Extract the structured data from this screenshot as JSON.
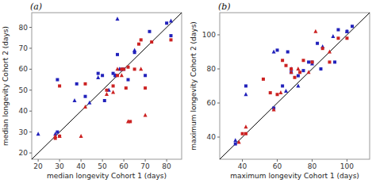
{
  "chart_data": [
    {
      "type": "scatter",
      "title": "(a)",
      "x_label": "median longevity Cohort 1 (days)",
      "y_label": "median longevity Cohort 2 (days)",
      "xlim": [
        17,
        87
      ],
      "ylim": [
        17,
        87
      ],
      "xticks": [
        20,
        30,
        40,
        50,
        60,
        70,
        80
      ],
      "yticks": [
        20,
        30,
        40,
        50,
        60,
        70,
        80
      ],
      "series": [
        {
          "type": "line",
          "line_style": "solid",
          "color": "#000000",
          "x": [
            17,
            87
          ],
          "values": [
            17,
            87
          ]
        },
        {
          "marker": "square",
          "color": "#2222bb",
          "x": [
            29,
            29,
            38,
            42,
            48,
            50,
            51,
            55,
            56,
            57,
            59,
            60,
            62,
            65,
            70,
            72,
            80,
            82
          ],
          "values": [
            30,
            55,
            53,
            47,
            58,
            57,
            45,
            58,
            57,
            67,
            60,
            60,
            55,
            68,
            57,
            78,
            82,
            76
          ]
        },
        {
          "marker": "triangle",
          "color": "#2222bb",
          "x": [
            20,
            28,
            37,
            44,
            48,
            53,
            56,
            57,
            58,
            65,
            82
          ],
          "values": [
            29,
            29,
            45,
            44,
            56,
            50,
            57,
            84,
            60,
            69,
            83
          ]
        },
        {
          "marker": "square",
          "color": "#cc2222",
          "x": [
            28,
            30,
            30,
            42,
            52,
            55,
            57,
            59,
            60,
            61,
            62,
            63,
            65,
            67,
            68,
            70,
            73,
            82
          ],
          "values": [
            27,
            28,
            52,
            53,
            50,
            52,
            57,
            60,
            60,
            51,
            61,
            35,
            60,
            72,
            74,
            51,
            73,
            74
          ]
        },
        {
          "marker": "triangle",
          "color": "#cc2222",
          "x": [
            28,
            30,
            40,
            42,
            52,
            55,
            57,
            59,
            62,
            68,
            70
          ],
          "values": [
            28,
            28,
            28,
            42,
            48,
            49,
            60,
            57,
            35,
            60,
            38
          ]
        }
      ]
    },
    {
      "type": "scatter",
      "title": "(b)",
      "x_label": "maximum longevity Cohort 1 (days)",
      "y_label": "maximum longevity Cohort 2 (days)",
      "xlim": [
        27,
        113
      ],
      "ylim": [
        27,
        113
      ],
      "xticks": [
        40,
        60,
        80,
        100
      ],
      "yticks": [
        40,
        60,
        80,
        100
      ],
      "series": [
        {
          "type": "line",
          "line_style": "solid",
          "color": "#000000",
          "x": [
            27,
            113
          ],
          "values": [
            27,
            113
          ]
        },
        {
          "marker": "square",
          "color": "#2222bb",
          "x": [
            36,
            42,
            58,
            60,
            63,
            66,
            68,
            72,
            75,
            78,
            80,
            83,
            85,
            93,
            95,
            100,
            103
          ],
          "values": [
            36,
            70,
            57,
            91,
            70,
            90,
            78,
            76,
            79,
            84,
            84,
            95,
            80,
            84,
            103,
            102,
            105
          ]
        },
        {
          "marker": "triangle",
          "color": "#2222bb",
          "x": [
            36,
            42,
            58,
            65,
            68,
            72,
            80,
            86,
            92,
            100
          ],
          "values": [
            38,
            65,
            90,
            67,
            80,
            70,
            83,
            93,
            99,
            102
          ]
        },
        {
          "marker": "square",
          "color": "#cc2222",
          "x": [
            40,
            42,
            52,
            56,
            60,
            63,
            65,
            68,
            70,
            73,
            75,
            80,
            86,
            90,
            95,
            100
          ],
          "values": [
            42,
            42,
            74,
            66,
            65,
            85,
            82,
            80,
            75,
            78,
            85,
            84,
            92,
            84,
            98,
            98
          ]
        },
        {
          "marker": "triangle",
          "color": "#cc2222",
          "x": [
            38,
            42,
            58,
            62,
            68,
            72,
            78,
            82,
            90
          ],
          "values": [
            37,
            46,
            56,
            66,
            78,
            80,
            78,
            102,
            90
          ]
        }
      ]
    }
  ]
}
